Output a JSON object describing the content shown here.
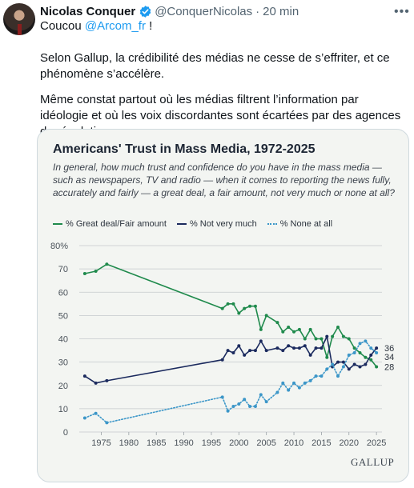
{
  "post": {
    "author_name": "Nicolas Conquer",
    "handle": "@ConquerNicolas",
    "separator": "·",
    "time": "20 min",
    "more_icon": "more-horizontal-icon",
    "line1_prefix": "Coucou ",
    "mention": "@Arcom_fr",
    "line1_suffix": " !",
    "paragraph1": "Selon Gallup, la crédibilité des médias ne cesse de s’effriter, et ce phénomène s’accélère.",
    "paragraph2": "Même constat partout où les médias filtrent l’information par idéologie et où les voix discordantes sont écartées par des agences de régulation.",
    "verified_color": "#1d9bf0",
    "mention_color": "#1d9bf0"
  },
  "card": {
    "title": "Americans' Trust in Mass Media, 1972-2025",
    "subtitle": "In general, how much trust and confidence do you have in the mass media — such as newspapers, TV and radio — when it comes to reporting the news fully, accurately and fairly — a great deal, a fair amount, not very much or none at all?",
    "source": "GALLUP"
  },
  "chart_data": {
    "type": "line",
    "title": "Americans' Trust in Mass Media, 1972-2025",
    "ylim": [
      0,
      80
    ],
    "yticks": [
      "0",
      "10",
      "20",
      "30",
      "40",
      "50",
      "60",
      "70",
      "80%"
    ],
    "xlim": [
      1971,
      2026
    ],
    "xticks": [
      "1975",
      "1980",
      "1985",
      "1990",
      "1995",
      "2000",
      "2005",
      "2010",
      "2015",
      "2020",
      "2025"
    ],
    "grid": true,
    "legend_position": "top",
    "series": [
      {
        "name": "% Great deal/Fair amount",
        "color": "#1f8a4c",
        "style": "solid",
        "end_label": "28",
        "points": [
          [
            1972,
            68
          ],
          [
            1974,
            69
          ],
          [
            1976,
            72
          ],
          [
            1997,
            53
          ],
          [
            1998,
            55
          ],
          [
            1999,
            55
          ],
          [
            2000,
            51
          ],
          [
            2001,
            53
          ],
          [
            2002,
            54
          ],
          [
            2003,
            54
          ],
          [
            2004,
            44
          ],
          [
            2005,
            50
          ],
          [
            2007,
            47
          ],
          [
            2008,
            43
          ],
          [
            2009,
            45
          ],
          [
            2010,
            43
          ],
          [
            2011,
            44
          ],
          [
            2012,
            40
          ],
          [
            2013,
            44
          ],
          [
            2014,
            40
          ],
          [
            2015,
            40
          ],
          [
            2016,
            32
          ],
          [
            2017,
            41
          ],
          [
            2018,
            45
          ],
          [
            2019,
            41
          ],
          [
            2020,
            40
          ],
          [
            2021,
            36
          ],
          [
            2022,
            34
          ],
          [
            2023,
            32
          ],
          [
            2024,
            31
          ],
          [
            2025,
            28
          ]
        ]
      },
      {
        "name": "% Not very much",
        "color": "#1b2a5e",
        "style": "solid",
        "end_label": "36",
        "points": [
          [
            1972,
            24
          ],
          [
            1974,
            21
          ],
          [
            1976,
            22
          ],
          [
            1997,
            31
          ],
          [
            1998,
            35
          ],
          [
            1999,
            34
          ],
          [
            2000,
            37
          ],
          [
            2001,
            33
          ],
          [
            2002,
            35
          ],
          [
            2003,
            35
          ],
          [
            2004,
            39
          ],
          [
            2005,
            35
          ],
          [
            2007,
            36
          ],
          [
            2008,
            35
          ],
          [
            2009,
            37
          ],
          [
            2010,
            36
          ],
          [
            2011,
            36
          ],
          [
            2012,
            37
          ],
          [
            2013,
            33
          ],
          [
            2014,
            36
          ],
          [
            2015,
            36
          ],
          [
            2016,
            41
          ],
          [
            2017,
            28
          ],
          [
            2018,
            30
          ],
          [
            2019,
            30
          ],
          [
            2020,
            27
          ],
          [
            2021,
            29
          ],
          [
            2022,
            28
          ],
          [
            2023,
            29
          ],
          [
            2024,
            33
          ],
          [
            2025,
            36
          ]
        ]
      },
      {
        "name": "% None at all",
        "color": "#3b96c8",
        "style": "dotted",
        "end_label": "34",
        "points": [
          [
            1972,
            6
          ],
          [
            1974,
            8
          ],
          [
            1976,
            4
          ],
          [
            1997,
            15
          ],
          [
            1998,
            9
          ],
          [
            1999,
            11
          ],
          [
            2000,
            12
          ],
          [
            2001,
            14
          ],
          [
            2002,
            11
          ],
          [
            2003,
            11
          ],
          [
            2004,
            16
          ],
          [
            2005,
            13
          ],
          [
            2007,
            17
          ],
          [
            2008,
            21
          ],
          [
            2009,
            18
          ],
          [
            2010,
            21
          ],
          [
            2011,
            19
          ],
          [
            2012,
            21
          ],
          [
            2013,
            22
          ],
          [
            2014,
            24
          ],
          [
            2015,
            24
          ],
          [
            2016,
            27
          ],
          [
            2017,
            29
          ],
          [
            2018,
            24
          ],
          [
            2019,
            28
          ],
          [
            2020,
            33
          ],
          [
            2021,
            34
          ],
          [
            2022,
            38
          ],
          [
            2023,
            39
          ],
          [
            2024,
            36
          ],
          [
            2025,
            34
          ]
        ]
      }
    ]
  }
}
